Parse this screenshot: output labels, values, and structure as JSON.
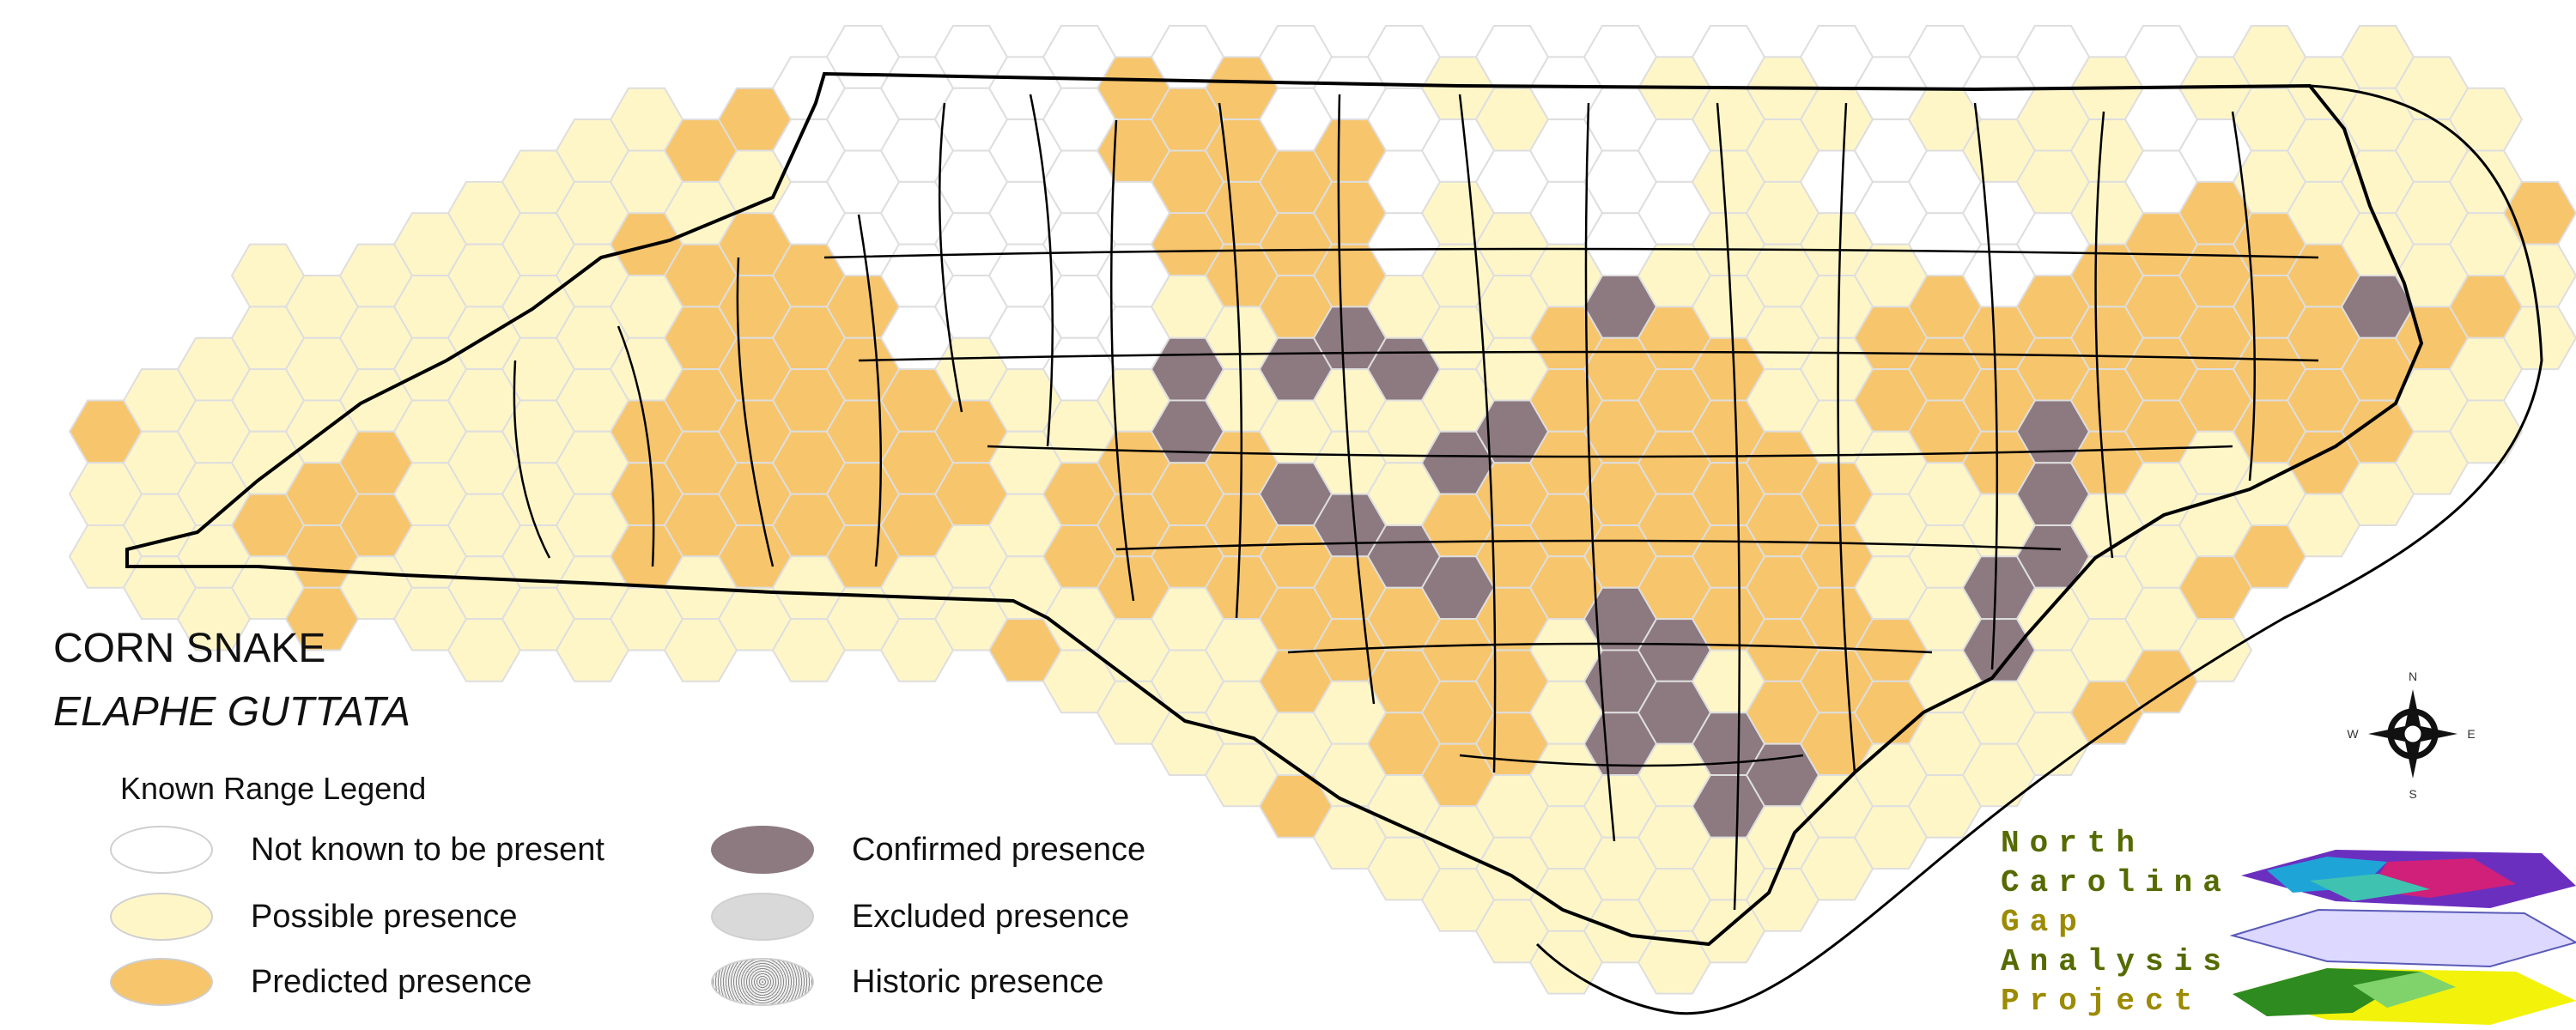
{
  "title": "CORN SNAKE",
  "subtitle": "ELAPHE GUTTATA",
  "legend": {
    "title": "Known Range Legend",
    "items": [
      {
        "label": "Not known to be present",
        "color": "#ffffff"
      },
      {
        "label": "Possible presence",
        "color": "#fff6c8"
      },
      {
        "label": "Predicted presence",
        "color": "#f7c56c"
      },
      {
        "label": "Confirmed presence",
        "color": "#8d7a80"
      },
      {
        "label": "Excluded presence",
        "color": "#d9d9d9"
      },
      {
        "label": "Historic presence",
        "color": "#bdbdbd"
      }
    ]
  },
  "compass": {
    "n": "N",
    "s": "S",
    "e": "E",
    "w": "W"
  },
  "logo_text": [
    "North",
    "Carolina",
    "Gap",
    "Analysis",
    "Project"
  ],
  "colors": {
    "not_known": "#ffffff",
    "possible": "#fff6c8",
    "predicted": "#f7c56c",
    "confirmed": "#8d7a80",
    "hex_outline": "#dedede",
    "boundary": "#000000"
  }
}
